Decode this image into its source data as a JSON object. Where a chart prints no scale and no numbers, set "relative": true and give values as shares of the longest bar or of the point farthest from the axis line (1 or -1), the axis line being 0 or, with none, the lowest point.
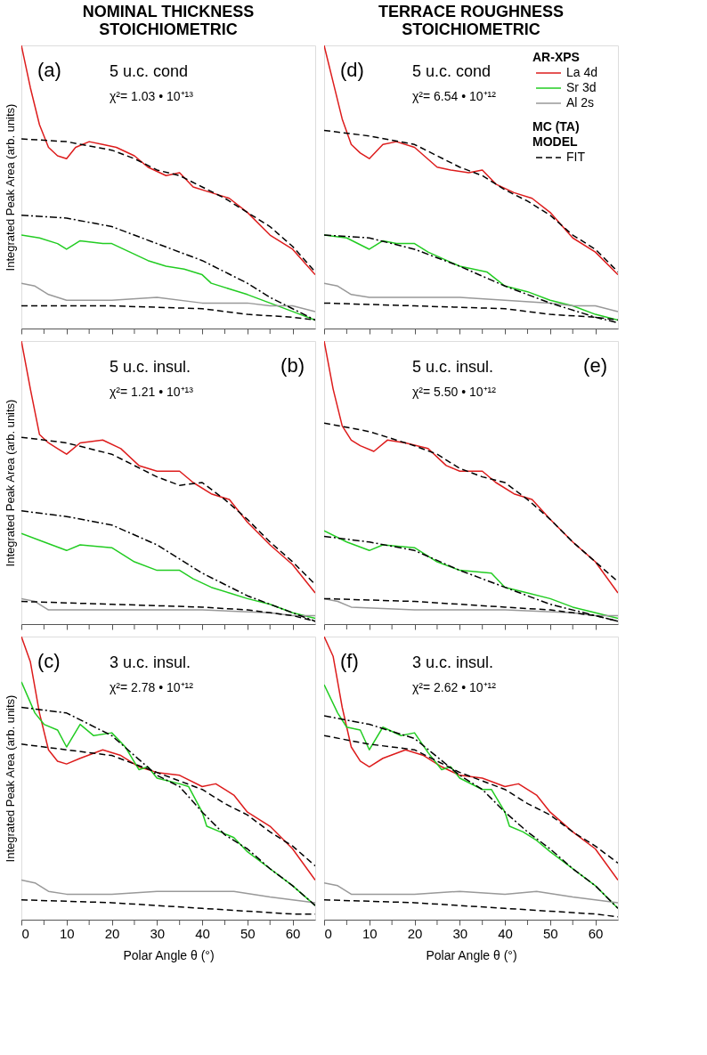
{
  "chart_data": [
    {
      "type": "line",
      "title": "NOMINAL THICKNESS\nSTOICHIOMETRIC",
      "ylabel": "Integrated Peak Area (arb. units)",
      "relative": true,
      "xlim": [
        0,
        65
      ],
      "xticks": [
        0,
        {
          "value": 5,
          "label": null
        },
        10,
        {
          "value": 15,
          "label": null
        },
        20,
        {
          "value": 25,
          "label": null
        },
        30,
        {
          "value": 35,
          "label": null
        },
        40,
        {
          "value": 45,
          "label": null
        },
        50,
        {
          "value": 55,
          "label": null
        },
        60
      ],
      "tick_labels": false,
      "legend": false,
      "annotations": [
        "(a)",
        "5 u.c. cond",
        "χ²= 1.03 • 10⁺¹³"
      ],
      "series": [
        {
          "color": "#dd1c1c",
          "line_style": "solid",
          "x": [
            0,
            2,
            4,
            6,
            8,
            10,
            12,
            15,
            18,
            21,
            25,
            28,
            32,
            35,
            38,
            42,
            46,
            50,
            55,
            60,
            65
          ],
          "values": [
            1.0,
            0.85,
            0.72,
            0.64,
            0.61,
            0.6,
            0.64,
            0.66,
            0.65,
            0.64,
            0.61,
            0.57,
            0.54,
            0.55,
            0.5,
            0.48,
            0.46,
            0.41,
            0.33,
            0.28,
            0.19
          ]
        },
        {
          "color": "#22cc22",
          "line_style": "solid",
          "x": [
            0,
            4,
            8,
            10,
            13,
            18,
            20,
            24,
            28,
            32,
            36,
            40,
            42,
            46,
            50,
            55,
            60,
            65
          ],
          "values": [
            0.33,
            0.32,
            0.3,
            0.28,
            0.31,
            0.3,
            0.3,
            0.27,
            0.24,
            0.22,
            0.21,
            0.19,
            0.16,
            0.14,
            0.12,
            0.09,
            0.06,
            0.03
          ]
        },
        {
          "color": "#999999",
          "line_style": "solid",
          "x": [
            0,
            3,
            6,
            10,
            20,
            30,
            40,
            50,
            55,
            60,
            65
          ],
          "values": [
            0.16,
            0.15,
            0.12,
            0.1,
            0.1,
            0.11,
            0.09,
            0.09,
            0.08,
            0.08,
            0.06
          ]
        },
        {
          "color": "#000000",
          "line_style": "dashed",
          "x": [
            0,
            10,
            20,
            25,
            30,
            35,
            40,
            45,
            50,
            55,
            60,
            65
          ],
          "values": [
            0.67,
            0.66,
            0.63,
            0.6,
            0.56,
            0.54,
            0.5,
            0.46,
            0.41,
            0.36,
            0.29,
            0.2
          ]
        },
        {
          "color": "#000000",
          "line_style": "dashdot",
          "x": [
            0,
            10,
            20,
            30,
            40,
            50,
            55,
            60,
            65
          ],
          "values": [
            0.4,
            0.39,
            0.36,
            0.3,
            0.24,
            0.16,
            0.11,
            0.07,
            0.03
          ]
        },
        {
          "color": "#000000",
          "line_style": "dashed",
          "x": [
            0,
            20,
            40,
            50,
            60,
            65
          ],
          "values": [
            0.08,
            0.08,
            0.07,
            0.05,
            0.04,
            0.03
          ]
        }
      ]
    },
    {
      "type": "line",
      "title": "TERRACE ROUGHNESS\nSTOICHIOMETRIC",
      "relative": true,
      "xlim": [
        0,
        65
      ],
      "xticks": [
        0,
        {
          "value": 5,
          "label": null
        },
        10,
        {
          "value": 15,
          "label": null
        },
        20,
        {
          "value": 25,
          "label": null
        },
        30,
        {
          "value": 35,
          "label": null
        },
        40,
        {
          "value": 45,
          "label": null
        },
        50,
        {
          "value": 55,
          "label": null
        },
        60
      ],
      "tick_labels": false,
      "legend": "top right",
      "legend_title": "AR-XPS",
      "annotations": [
        "(d)",
        "5 u.c. cond",
        "χ²= 6.54 • 10⁺¹²",
        "MC (TA)\nMODEL"
      ],
      "series": [
        {
          "name": "La 4d",
          "color": "#dd1c1c",
          "line_style": "solid",
          "x": [
            0,
            2,
            4,
            6,
            8,
            10,
            13,
            16,
            20,
            25,
            28,
            32,
            35,
            38,
            42,
            46,
            50,
            55,
            60,
            65
          ],
          "values": [
            1.0,
            0.87,
            0.74,
            0.65,
            0.62,
            0.6,
            0.65,
            0.66,
            0.64,
            0.57,
            0.56,
            0.55,
            0.56,
            0.51,
            0.48,
            0.46,
            0.41,
            0.32,
            0.27,
            0.19
          ]
        },
        {
          "name": "Sr 3d",
          "color": "#22cc22",
          "line_style": "solid",
          "x": [
            0,
            5,
            10,
            13,
            16,
            20,
            23,
            30,
            33,
            36,
            40,
            45,
            50,
            55,
            60,
            65
          ],
          "values": [
            0.33,
            0.32,
            0.28,
            0.31,
            0.3,
            0.3,
            0.27,
            0.22,
            0.21,
            0.2,
            0.15,
            0.13,
            0.1,
            0.08,
            0.05,
            0.03
          ]
        },
        {
          "name": "Al 2s",
          "color": "#999999",
          "line_style": "solid",
          "x": [
            0,
            3,
            6,
            10,
            20,
            30,
            40,
            50,
            55,
            60,
            65
          ],
          "values": [
            0.16,
            0.15,
            0.12,
            0.11,
            0.11,
            0.11,
            0.1,
            0.09,
            0.08,
            0.08,
            0.06
          ]
        },
        {
          "name": "FIT",
          "color": "#000000",
          "line_style": "dashed",
          "x": [
            0,
            10,
            20,
            25,
            30,
            35,
            40,
            45,
            50,
            55,
            60,
            65
          ],
          "values": [
            0.7,
            0.68,
            0.65,
            0.61,
            0.57,
            0.54,
            0.49,
            0.45,
            0.4,
            0.33,
            0.28,
            0.2
          ]
        },
        {
          "color": "#000000",
          "line_style": "dashdot",
          "x": [
            0,
            10,
            20,
            30,
            40,
            50,
            60,
            65
          ],
          "values": [
            0.33,
            0.32,
            0.28,
            0.22,
            0.15,
            0.09,
            0.04,
            0.02
          ]
        },
        {
          "color": "#000000",
          "line_style": "dashed",
          "x": [
            0,
            20,
            40,
            50,
            60,
            65
          ],
          "values": [
            0.09,
            0.08,
            0.07,
            0.05,
            0.04,
            0.03
          ]
        }
      ]
    },
    {
      "type": "line",
      "ylabel": "Integrated Peak Area (arb. units)",
      "relative": true,
      "xlim": [
        0,
        65
      ],
      "xticks": [
        0,
        {
          "value": 5,
          "label": null
        },
        10,
        {
          "value": 15,
          "label": null
        },
        20,
        {
          "value": 25,
          "label": null
        },
        30,
        {
          "value": 35,
          "label": null
        },
        40,
        {
          "value": 45,
          "label": null
        },
        50,
        {
          "value": 55,
          "label": null
        },
        60
      ],
      "tick_labels": false,
      "legend": false,
      "annotations": [
        "(b)",
        "5 u.c. insul.",
        "χ²= 1.21 • 10⁺¹³"
      ],
      "series": [
        {
          "color": "#dd1c1c",
          "line_style": "solid",
          "x": [
            0,
            2,
            4,
            6,
            8,
            10,
            13,
            18,
            22,
            26,
            30,
            35,
            38,
            42,
            46,
            50,
            55,
            60,
            65
          ],
          "values": [
            1.0,
            0.83,
            0.67,
            0.64,
            0.62,
            0.6,
            0.64,
            0.65,
            0.62,
            0.56,
            0.54,
            0.54,
            0.5,
            0.46,
            0.44,
            0.36,
            0.28,
            0.21,
            0.11
          ]
        },
        {
          "color": "#22cc22",
          "line_style": "solid",
          "x": [
            0,
            5,
            10,
            13,
            20,
            25,
            30,
            35,
            38,
            42,
            46,
            50,
            55,
            60,
            65
          ],
          "values": [
            0.32,
            0.29,
            0.26,
            0.28,
            0.27,
            0.22,
            0.19,
            0.19,
            0.16,
            0.13,
            0.11,
            0.09,
            0.07,
            0.04,
            0.02
          ]
        },
        {
          "color": "#999999",
          "line_style": "solid",
          "x": [
            0,
            3,
            6,
            20,
            40,
            55,
            60,
            65
          ],
          "values": [
            0.09,
            0.08,
            0.05,
            0.05,
            0.05,
            0.04,
            0.03,
            0.03
          ]
        },
        {
          "color": "#000000",
          "line_style": "dashed",
          "x": [
            0,
            10,
            20,
            25,
            30,
            35,
            40,
            45,
            50,
            55,
            60,
            65
          ],
          "values": [
            0.66,
            0.64,
            0.6,
            0.56,
            0.52,
            0.49,
            0.5,
            0.44,
            0.37,
            0.29,
            0.22,
            0.14
          ]
        },
        {
          "color": "#000000",
          "line_style": "dashdot",
          "x": [
            0,
            10,
            20,
            30,
            40,
            45,
            50,
            55,
            60,
            65
          ],
          "values": [
            0.4,
            0.38,
            0.35,
            0.28,
            0.18,
            0.14,
            0.1,
            0.07,
            0.04,
            0.01
          ]
        },
        {
          "color": "#000000",
          "line_style": "dashed",
          "x": [
            0,
            20,
            40,
            50,
            60,
            65
          ],
          "values": [
            0.08,
            0.07,
            0.06,
            0.05,
            0.03,
            0.01
          ]
        }
      ]
    },
    {
      "type": "line",
      "relative": true,
      "xlim": [
        0,
        65
      ],
      "xticks": [
        0,
        {
          "value": 5,
          "label": null
        },
        10,
        {
          "value": 15,
          "label": null
        },
        20,
        {
          "value": 25,
          "label": null
        },
        30,
        {
          "value": 35,
          "label": null
        },
        40,
        {
          "value": 45,
          "label": null
        },
        50,
        {
          "value": 55,
          "label": null
        },
        60
      ],
      "tick_labels": false,
      "legend": false,
      "annotations": [
        "(e)",
        "5 u.c. insul.",
        "χ²= 5.50 • 10⁺¹²"
      ],
      "series": [
        {
          "color": "#dd1c1c",
          "line_style": "solid",
          "x": [
            0,
            2,
            4,
            6,
            8,
            11,
            14,
            18,
            23,
            27,
            30,
            35,
            38,
            42,
            46,
            50,
            55,
            60,
            65
          ],
          "values": [
            1.0,
            0.83,
            0.7,
            0.65,
            0.63,
            0.61,
            0.65,
            0.64,
            0.62,
            0.56,
            0.54,
            0.54,
            0.5,
            0.46,
            0.44,
            0.37,
            0.29,
            0.22,
            0.11
          ]
        },
        {
          "color": "#22cc22",
          "line_style": "solid",
          "x": [
            0,
            5,
            10,
            13,
            20,
            25,
            30,
            37,
            40,
            45,
            50,
            55,
            60,
            65
          ],
          "values": [
            0.33,
            0.29,
            0.26,
            0.28,
            0.27,
            0.22,
            0.19,
            0.18,
            0.13,
            0.11,
            0.09,
            0.06,
            0.04,
            0.02
          ]
        },
        {
          "color": "#999999",
          "line_style": "solid",
          "x": [
            0,
            3,
            6,
            20,
            40,
            55,
            60,
            65
          ],
          "values": [
            0.09,
            0.08,
            0.06,
            0.05,
            0.05,
            0.04,
            0.03,
            0.03
          ]
        },
        {
          "color": "#000000",
          "line_style": "dashed",
          "x": [
            0,
            10,
            20,
            25,
            30,
            35,
            40,
            45,
            50,
            55,
            60,
            65
          ],
          "values": [
            0.71,
            0.68,
            0.63,
            0.6,
            0.55,
            0.52,
            0.5,
            0.44,
            0.37,
            0.29,
            0.22,
            0.15
          ]
        },
        {
          "color": "#000000",
          "line_style": "dashdot",
          "x": [
            0,
            10,
            20,
            30,
            40,
            50,
            60,
            65
          ],
          "values": [
            0.31,
            0.29,
            0.26,
            0.19,
            0.13,
            0.07,
            0.03,
            0.01
          ]
        },
        {
          "color": "#000000",
          "line_style": "dashed",
          "x": [
            0,
            20,
            40,
            50,
            60,
            65
          ],
          "values": [
            0.09,
            0.08,
            0.06,
            0.05,
            0.03,
            0.01
          ]
        }
      ]
    },
    {
      "type": "line",
      "ylabel": "Integrated Peak Area (arb. units)",
      "xlabel": "Polar Angle θ (°)",
      "relative": true,
      "xlim": [
        0,
        65
      ],
      "xticks": [
        0,
        {
          "value": 5,
          "label": null
        },
        10,
        {
          "value": 15,
          "label": null
        },
        20,
        {
          "value": 25,
          "label": null
        },
        30,
        {
          "value": 35,
          "label": null
        },
        40,
        {
          "value": 45,
          "label": null
        },
        50,
        {
          "value": 55,
          "label": null
        },
        60
      ],
      "tick_labels": "x",
      "legend": false,
      "annotations": [
        "(c)",
        "3 u.c. insul.",
        "χ²= 2.78 • 10⁺¹²"
      ],
      "series": [
        {
          "color": "#dd1c1c",
          "line_style": "solid",
          "x": [
            0,
            2,
            4,
            6,
            8,
            10,
            13,
            18,
            22,
            26,
            30,
            35,
            40,
            43,
            47,
            50,
            55,
            60,
            65
          ],
          "values": [
            1.0,
            0.91,
            0.73,
            0.6,
            0.56,
            0.55,
            0.57,
            0.6,
            0.58,
            0.54,
            0.52,
            0.51,
            0.47,
            0.48,
            0.44,
            0.38,
            0.33,
            0.25,
            0.14
          ]
        },
        {
          "color": "#22cc22",
          "line_style": "solid",
          "x": [
            0,
            3,
            5,
            8,
            10,
            13,
            16,
            20,
            23,
            26,
            28,
            30,
            35,
            37,
            40,
            41,
            44,
            47,
            50,
            55,
            60,
            65
          ],
          "values": [
            0.84,
            0.73,
            0.69,
            0.67,
            0.61,
            0.69,
            0.65,
            0.66,
            0.61,
            0.53,
            0.54,
            0.5,
            0.48,
            0.47,
            0.38,
            0.33,
            0.31,
            0.29,
            0.24,
            0.18,
            0.12,
            0.05
          ]
        },
        {
          "color": "#999999",
          "line_style": "solid",
          "x": [
            0,
            3,
            6,
            10,
            20,
            30,
            40,
            47,
            55,
            60,
            65
          ],
          "values": [
            0.14,
            0.13,
            0.1,
            0.09,
            0.09,
            0.1,
            0.1,
            0.1,
            0.08,
            0.07,
            0.06
          ]
        },
        {
          "color": "#000000",
          "line_style": "dashed",
          "x": [
            0,
            10,
            20,
            30,
            40,
            45,
            50,
            55,
            60,
            65
          ],
          "values": [
            0.62,
            0.6,
            0.58,
            0.52,
            0.46,
            0.41,
            0.37,
            0.31,
            0.26,
            0.19
          ]
        },
        {
          "color": "#000000",
          "line_style": "dashdot",
          "x": [
            0,
            10,
            15,
            20,
            25,
            30,
            35,
            40,
            45,
            50,
            55,
            60,
            65
          ],
          "values": [
            0.75,
            0.73,
            0.69,
            0.65,
            0.58,
            0.51,
            0.47,
            0.38,
            0.3,
            0.25,
            0.18,
            0.12,
            0.05
          ]
        },
        {
          "color": "#000000",
          "line_style": "dashed",
          "x": [
            0,
            20,
            40,
            50,
            60,
            65
          ],
          "values": [
            0.07,
            0.06,
            0.04,
            0.03,
            0.02,
            0.02
          ]
        }
      ]
    },
    {
      "type": "line",
      "xlabel": "Polar Angle θ (°)",
      "relative": true,
      "xlim": [
        0,
        65
      ],
      "xticks": [
        0,
        {
          "value": 5,
          "label": null
        },
        10,
        {
          "value": 15,
          "label": null
        },
        20,
        {
          "value": 25,
          "label": null
        },
        30,
        {
          "value": 35,
          "label": null
        },
        40,
        {
          "value": 45,
          "label": null
        },
        50,
        {
          "value": 55,
          "label": null
        },
        60
      ],
      "tick_labels": "x",
      "legend": false,
      "annotations": [
        "(f)",
        "3 u.c. insul.",
        "χ²= 2.62 • 10⁺¹²"
      ],
      "series": [
        {
          "color": "#dd1c1c",
          "line_style": "solid",
          "x": [
            0,
            2,
            4,
            6,
            8,
            10,
            13,
            18,
            22,
            26,
            30,
            35,
            40,
            43,
            47,
            50,
            55,
            60,
            65
          ],
          "values": [
            1.0,
            0.93,
            0.75,
            0.61,
            0.56,
            0.54,
            0.57,
            0.6,
            0.58,
            0.54,
            0.51,
            0.5,
            0.47,
            0.48,
            0.44,
            0.38,
            0.31,
            0.25,
            0.14
          ]
        },
        {
          "color": "#22cc22",
          "line_style": "solid",
          "x": [
            0,
            3,
            5,
            8,
            10,
            13,
            17,
            20,
            23,
            26,
            28,
            30,
            35,
            37,
            40,
            41,
            44,
            47,
            50,
            55,
            60,
            65
          ],
          "values": [
            0.83,
            0.73,
            0.68,
            0.67,
            0.6,
            0.68,
            0.65,
            0.66,
            0.59,
            0.53,
            0.54,
            0.5,
            0.46,
            0.46,
            0.38,
            0.33,
            0.31,
            0.28,
            0.24,
            0.18,
            0.12,
            0.04
          ]
        },
        {
          "color": "#999999",
          "line_style": "solid",
          "x": [
            0,
            3,
            6,
            10,
            20,
            30,
            40,
            47,
            55,
            60,
            65
          ],
          "values": [
            0.13,
            0.12,
            0.09,
            0.09,
            0.09,
            0.1,
            0.09,
            0.1,
            0.08,
            0.07,
            0.06
          ]
        },
        {
          "color": "#000000",
          "line_style": "dashed",
          "x": [
            0,
            10,
            20,
            30,
            40,
            45,
            50,
            55,
            60,
            65
          ],
          "values": [
            0.65,
            0.62,
            0.6,
            0.52,
            0.46,
            0.41,
            0.37,
            0.31,
            0.26,
            0.2
          ]
        },
        {
          "color": "#000000",
          "line_style": "dashdot",
          "x": [
            0,
            10,
            20,
            30,
            35,
            40,
            45,
            50,
            55,
            60,
            65
          ],
          "values": [
            0.72,
            0.69,
            0.64,
            0.51,
            0.46,
            0.38,
            0.31,
            0.25,
            0.18,
            0.12,
            0.04
          ]
        },
        {
          "color": "#000000",
          "line_style": "dashed",
          "x": [
            0,
            20,
            40,
            50,
            60,
            65
          ],
          "values": [
            0.07,
            0.06,
            0.04,
            0.03,
            0.02,
            0.01
          ]
        }
      ]
    }
  ]
}
